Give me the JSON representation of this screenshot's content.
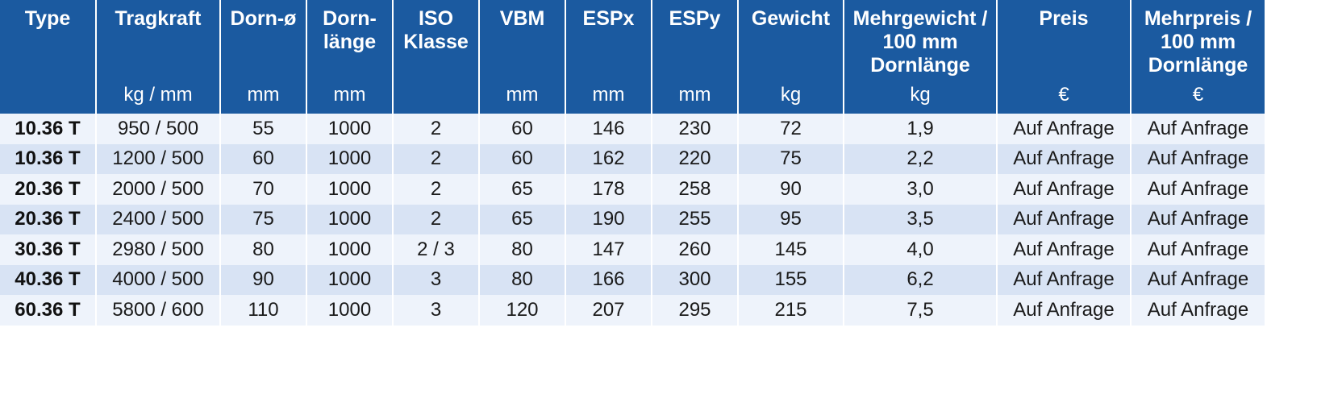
{
  "table": {
    "columns": [
      {
        "name": "Type",
        "unit": ""
      },
      {
        "name": "Tragkraft",
        "unit": "kg / mm"
      },
      {
        "name": "Dorn-ø",
        "unit": "mm"
      },
      {
        "name": "Dorn-\nlänge",
        "unit": "mm"
      },
      {
        "name": "ISO\nKlasse",
        "unit": ""
      },
      {
        "name": "VBM",
        "unit": "mm"
      },
      {
        "name": "ESPx",
        "unit": "mm"
      },
      {
        "name": "ESPy",
        "unit": "mm"
      },
      {
        "name": "Gewicht",
        "unit": "kg"
      },
      {
        "name": "Mehrgewicht /\n100 mm\nDornlänge",
        "unit": "kg"
      },
      {
        "name": "Preis",
        "unit": "€"
      },
      {
        "name": "Mehrpreis /\n100 mm\nDornlänge",
        "unit": "€"
      }
    ],
    "rows": [
      [
        "10.36 T",
        "950 / 500",
        "55",
        "1000",
        "2",
        "60",
        "146",
        "230",
        "72",
        "1,9",
        "Auf Anfrage",
        "Auf Anfrage"
      ],
      [
        "10.36 T",
        "1200 / 500",
        "60",
        "1000",
        "2",
        "60",
        "162",
        "220",
        "75",
        "2,2",
        "Auf Anfrage",
        "Auf Anfrage"
      ],
      [
        "20.36 T",
        "2000 / 500",
        "70",
        "1000",
        "2",
        "65",
        "178",
        "258",
        "90",
        "3,0",
        "Auf Anfrage",
        "Auf Anfrage"
      ],
      [
        "20.36 T",
        "2400 / 500",
        "75",
        "1000",
        "2",
        "65",
        "190",
        "255",
        "95",
        "3,5",
        "Auf Anfrage",
        "Auf Anfrage"
      ],
      [
        "30.36 T",
        "2980 / 500",
        "80",
        "1000",
        "2 / 3",
        "80",
        "147",
        "260",
        "145",
        "4,0",
        "Auf Anfrage",
        "Auf Anfrage"
      ],
      [
        "40.36 T",
        "4000 / 500",
        "90",
        "1000",
        "3",
        "80",
        "166",
        "300",
        "155",
        "6,2",
        "Auf Anfrage",
        "Auf Anfrage"
      ],
      [
        "60.36 T",
        "5800 / 600",
        "110",
        "1000",
        "3",
        "120",
        "207",
        "295",
        "215",
        "7,5",
        "Auf Anfrage",
        "Auf Anfrage"
      ]
    ]
  },
  "colors": {
    "header_bg": "#1b5aa0",
    "header_text": "#ffffff",
    "row_light": "#eef3fb",
    "row_dark": "#d8e3f4"
  }
}
